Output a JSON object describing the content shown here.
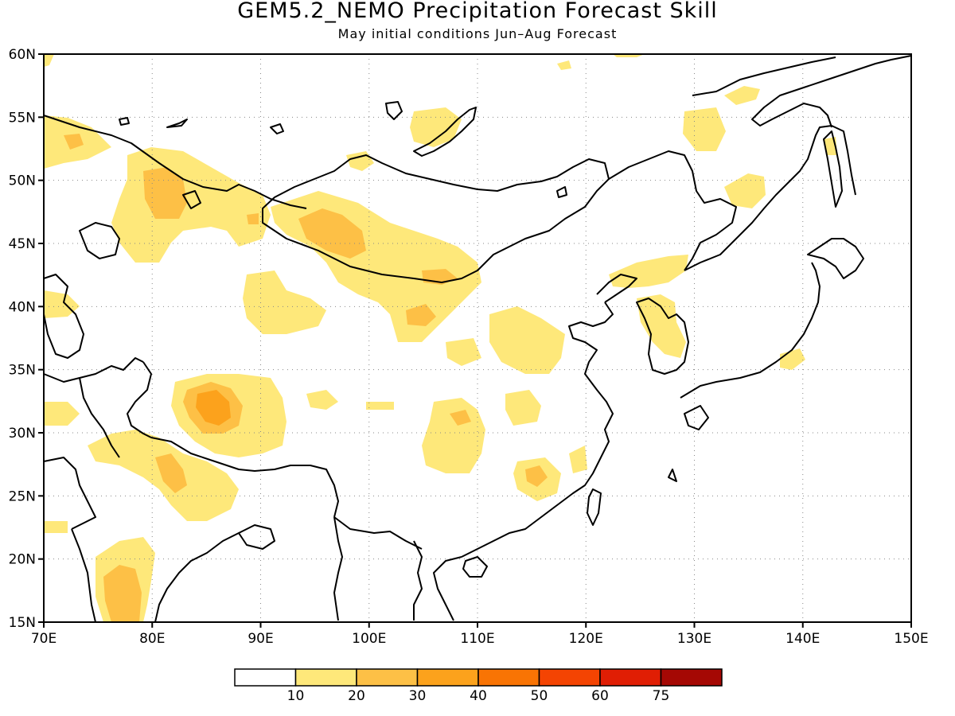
{
  "title": "GEM5.2_NEMO Precipitation Forecast Skill",
  "subtitle": "May initial conditions  Jun–Aug Forecast",
  "map": {
    "lon_range": [
      70,
      150
    ],
    "lat_range": [
      15,
      60
    ],
    "lon_ticks": [
      "70E",
      "80E",
      "90E",
      "100E",
      "110E",
      "120E",
      "130E",
      "140E",
      "150E"
    ],
    "lat_ticks": [
      "15N",
      "20N",
      "25N",
      "30N",
      "35N",
      "40N",
      "45N",
      "50N",
      "55N",
      "60N"
    ],
    "grid": "dotted"
  },
  "colorbar": {
    "colors": [
      "#ffffff",
      "#fee87a",
      "#fdc046",
      "#fca21c",
      "#f97404",
      "#f44402",
      "#e01e04",
      "#a50804"
    ],
    "labels": [
      "10",
      "20",
      "30",
      "40",
      "50",
      "60",
      "75"
    ]
  }
}
